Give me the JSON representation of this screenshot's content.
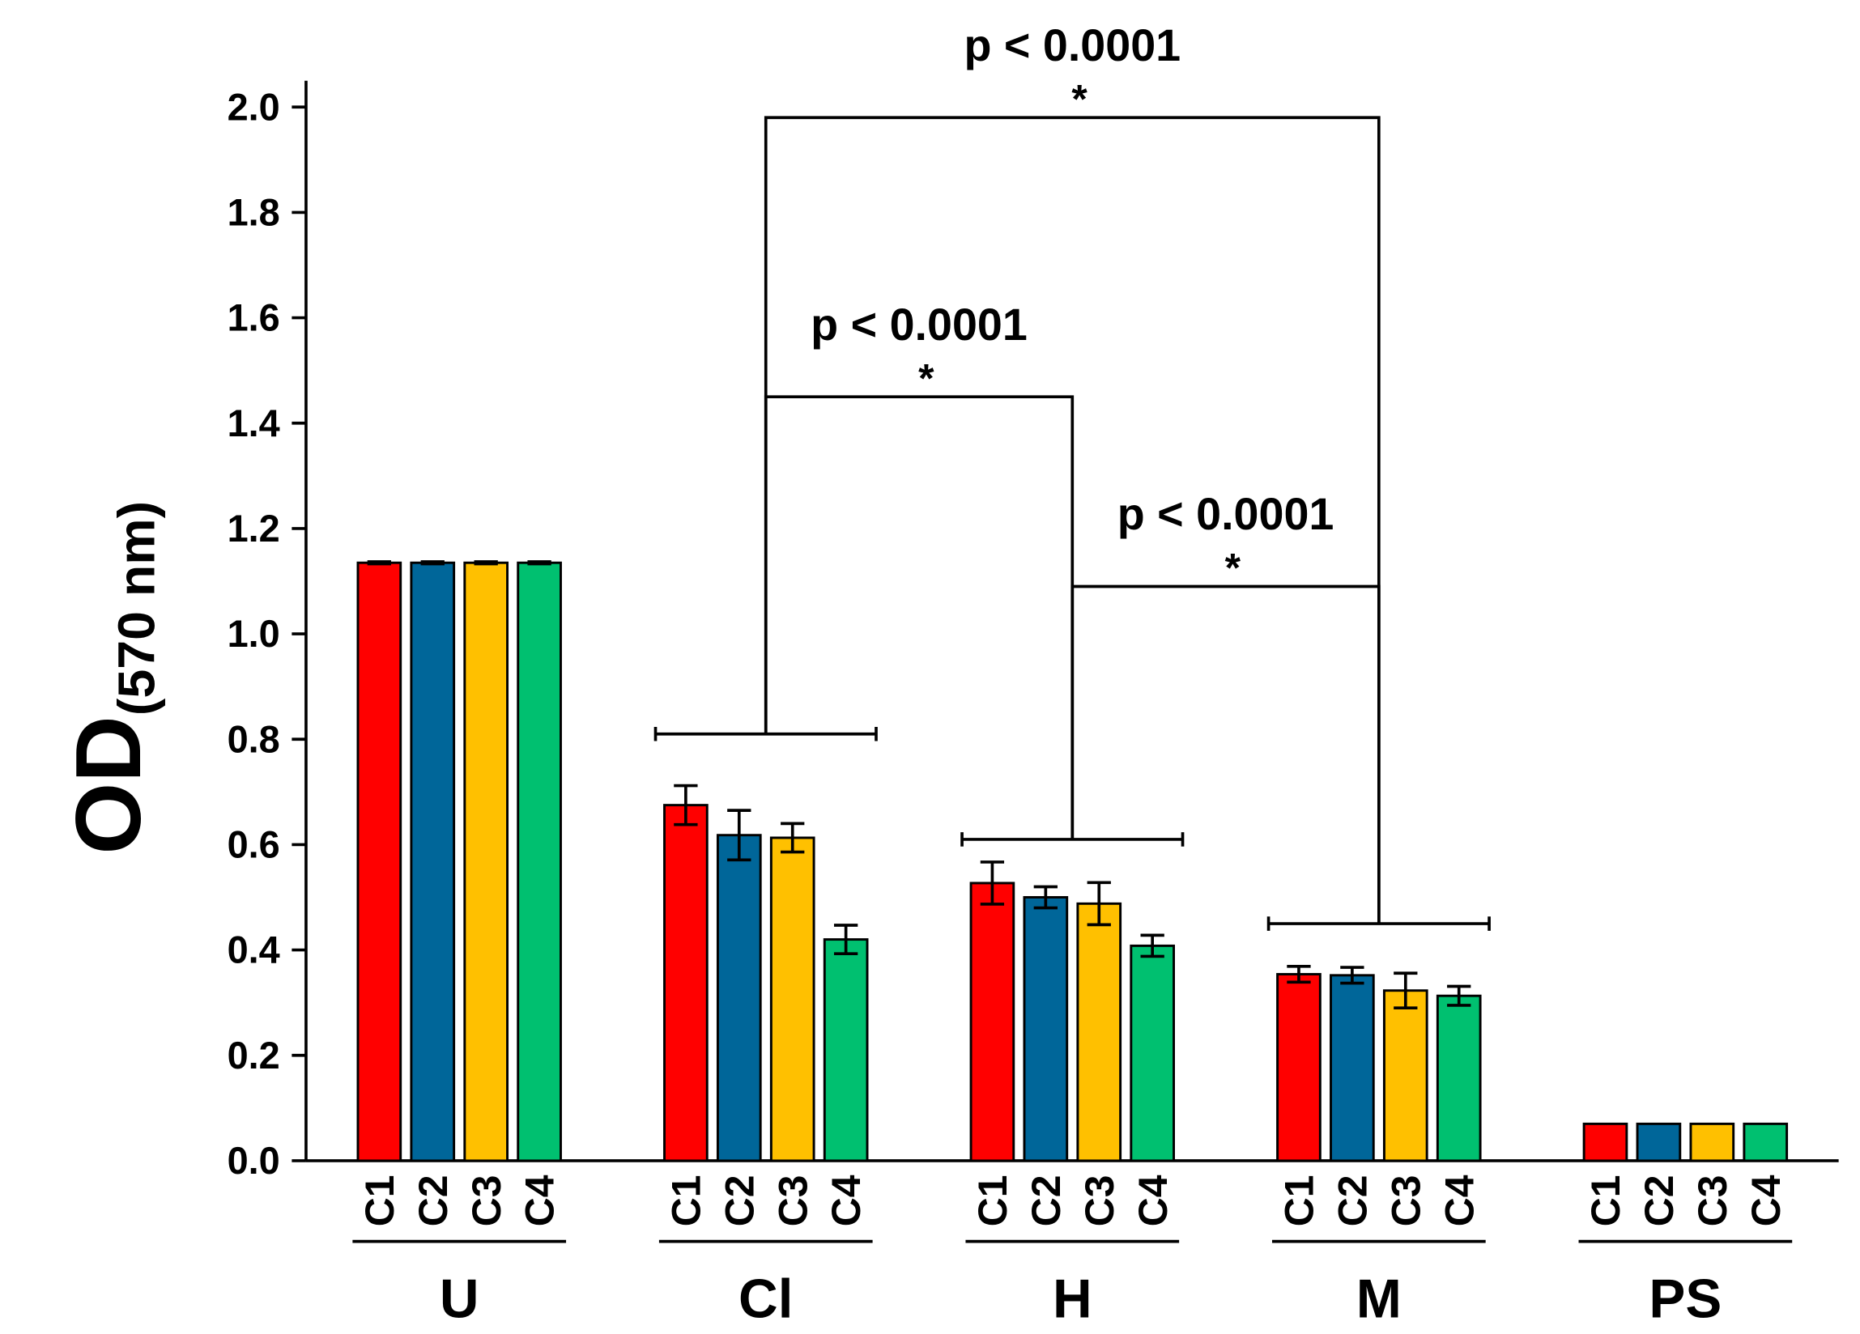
{
  "chart_data": {
    "type": "bar",
    "ylabel": {
      "main": "OD",
      "sub": "(570 nm)"
    },
    "categories": [
      "U",
      "Cl",
      "H",
      "M",
      "PS"
    ],
    "series": [
      {
        "name": "C1",
        "color": "#ff0000",
        "values": [
          1.135,
          0.675,
          0.527,
          0.354,
          0.07
        ],
        "errors": [
          0.002,
          0.037,
          0.04,
          0.015,
          0
        ]
      },
      {
        "name": "C2",
        "color": "#006699",
        "values": [
          1.135,
          0.618,
          0.5,
          0.352,
          0.07
        ],
        "errors": [
          0.002,
          0.047,
          0.02,
          0.015,
          0
        ]
      },
      {
        "name": "C3",
        "color": "#ffc000",
        "values": [
          1.135,
          0.613,
          0.488,
          0.323,
          0.07
        ],
        "errors": [
          0.002,
          0.027,
          0.04,
          0.033,
          0
        ]
      },
      {
        "name": "C4",
        "color": "#00c070",
        "values": [
          1.135,
          0.42,
          0.408,
          0.313,
          0.07
        ],
        "errors": [
          0.002,
          0.027,
          0.02,
          0.018,
          0
        ]
      }
    ],
    "ylim": [
      0,
      2.05
    ],
    "yticks": [
      {
        "value": 0,
        "label": "0.0"
      },
      0.2,
      0.4,
      0.6,
      0.8,
      {
        "value": 1,
        "label": "1.0"
      },
      1.2,
      1.4,
      1.6,
      1.8,
      {
        "value": 2,
        "label": "2.0"
      }
    ],
    "group_lines": [
      {
        "group": "Cl",
        "level": 0.81
      },
      {
        "group": "H",
        "level": 0.61
      },
      {
        "group": "M",
        "level": 0.45
      }
    ],
    "comparisons": [
      {
        "from": "Cl",
        "to": "M",
        "level": 1.98,
        "label": "p < 0.0001",
        "mark": "*"
      },
      {
        "from": "Cl",
        "to": "H",
        "level": 1.45,
        "label": "p < 0.0001",
        "mark": "*"
      },
      {
        "from": "H",
        "to": "M",
        "level": 1.09,
        "label": "p < 0.0001",
        "mark": "*"
      }
    ]
  }
}
